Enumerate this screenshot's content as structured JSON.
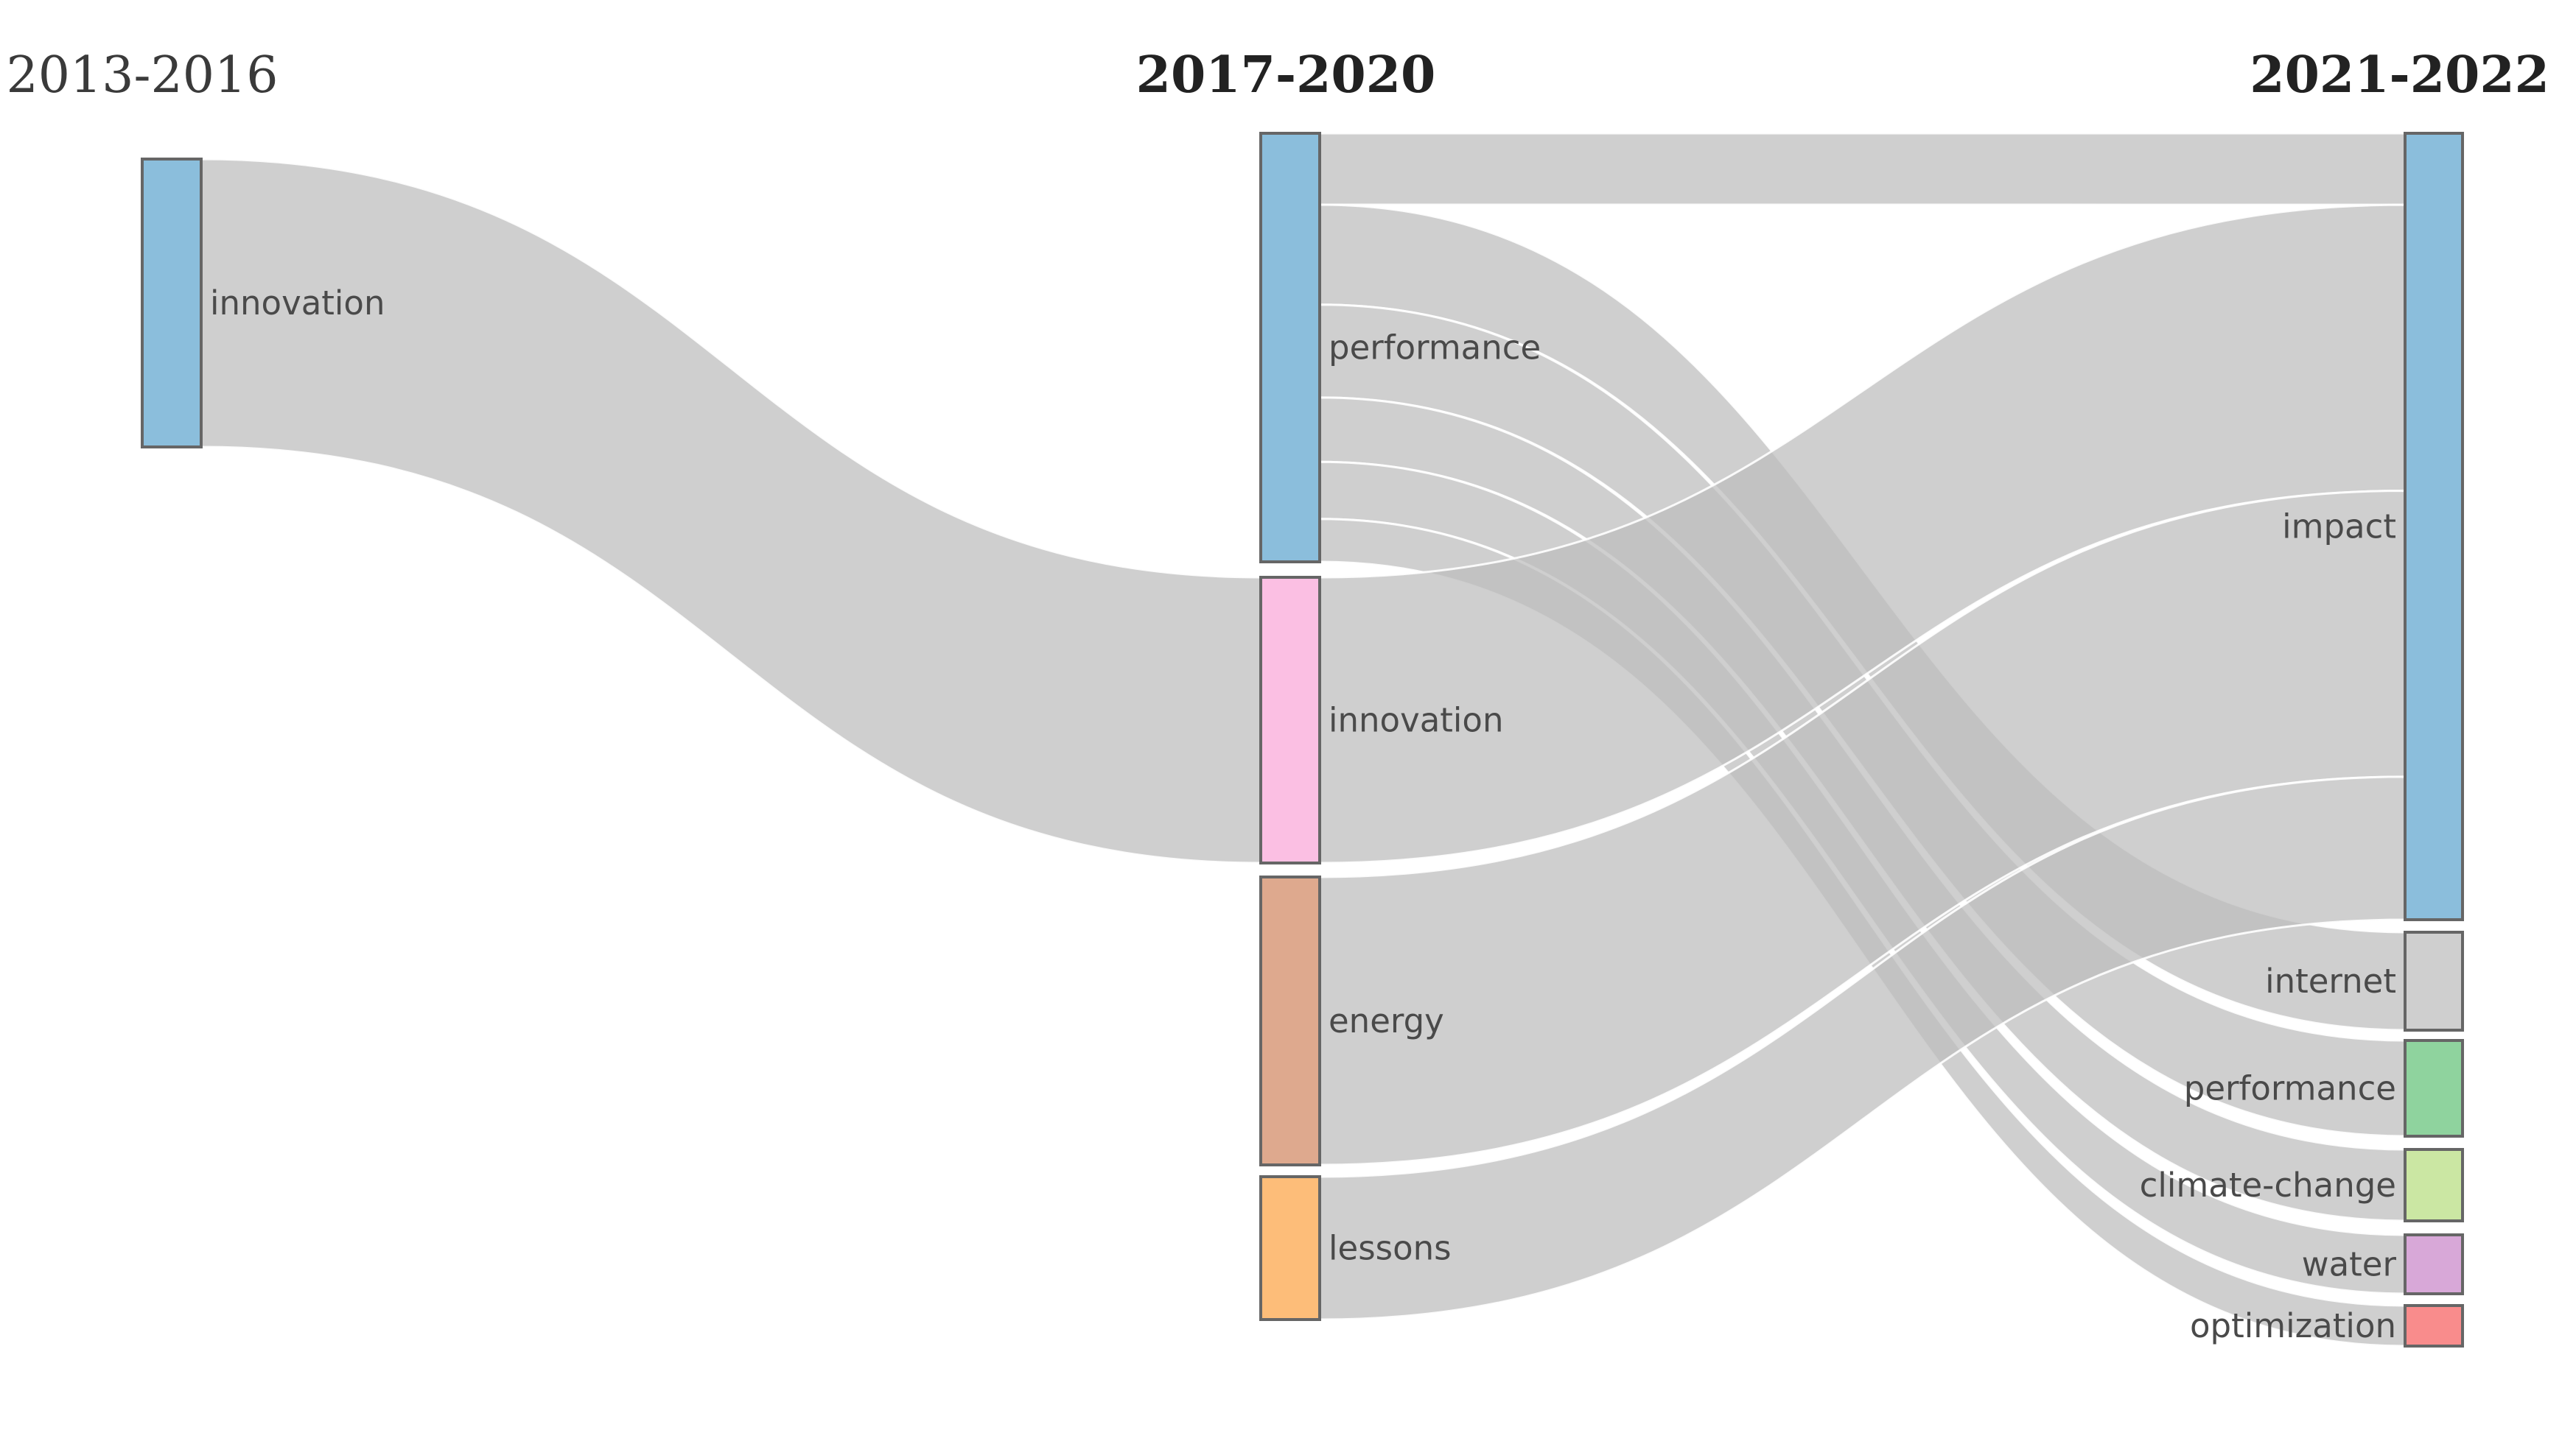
{
  "columns": [
    {
      "id": "c1",
      "label": "2013-2016",
      "bold": false
    },
    {
      "id": "c2",
      "label": "2017-2020",
      "bold": true
    },
    {
      "id": "c3",
      "label": "2021-2022",
      "bold": true
    }
  ],
  "nodes": [
    {
      "id": "a_innovation",
      "label": "innovation",
      "column": "c1",
      "color": "#8bbedc"
    },
    {
      "id": "b_performance",
      "label": "performance",
      "column": "c2",
      "color": "#8bbedc"
    },
    {
      "id": "b_innovation",
      "label": "innovation",
      "column": "c2",
      "color": "#fbbfe3"
    },
    {
      "id": "b_energy",
      "label": "energy",
      "column": "c2",
      "color": "#dea98e"
    },
    {
      "id": "b_lessons",
      "label": "lessons",
      "column": "c2",
      "color": "#fdbd79"
    },
    {
      "id": "c_impact",
      "label": "impact",
      "column": "c3",
      "color": "#8bbedc"
    },
    {
      "id": "c_internet",
      "label": "internet",
      "column": "c3",
      "color": "#cfcfcf"
    },
    {
      "id": "c_performance",
      "label": "performance",
      "column": "c3",
      "color": "#8fd39e"
    },
    {
      "id": "c_climate",
      "label": "climate-change",
      "column": "c3",
      "color": "#cbe7a3"
    },
    {
      "id": "c_water",
      "label": "water",
      "column": "c3",
      "color": "#d8a8d8"
    },
    {
      "id": "c_optimization",
      "label": "optimization",
      "column": "c3",
      "color": "#f98c8c"
    }
  ],
  "links": [
    {
      "source": "a_innovation",
      "target": "b_innovation",
      "value": 40
    },
    {
      "source": "b_performance",
      "target": "c_impact",
      "value": 10
    },
    {
      "source": "b_performance",
      "target": "c_internet",
      "value": 14
    },
    {
      "source": "b_performance",
      "target": "c_performance",
      "value": 13
    },
    {
      "source": "b_performance",
      "target": "c_climate",
      "value": 9
    },
    {
      "source": "b_performance",
      "target": "c_water",
      "value": 8
    },
    {
      "source": "b_performance",
      "target": "c_optimization",
      "value": 6
    },
    {
      "source": "b_innovation",
      "target": "c_impact",
      "value": 40
    },
    {
      "source": "b_energy",
      "target": "c_impact",
      "value": 40
    },
    {
      "source": "b_lessons",
      "target": "c_impact",
      "value": 20
    }
  ]
}
